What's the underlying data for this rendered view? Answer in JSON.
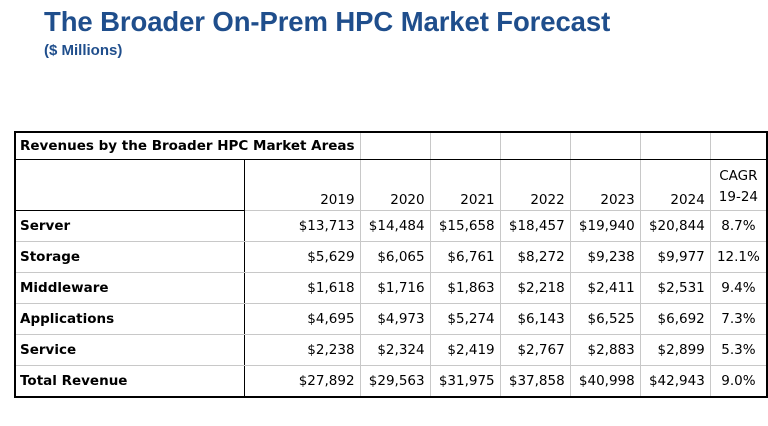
{
  "title": "The Broader On-Prem HPC Market Forecast",
  "subtitle": "($ Millions)",
  "table": {
    "caption": "Revenues by the Broader HPC Market Areas",
    "years": [
      "2019",
      "2020",
      "2021",
      "2022",
      "2023",
      "2024"
    ],
    "cagr_header": [
      "CAGR",
      "19-24"
    ],
    "rows": [
      {
        "label": "Server",
        "values": [
          "$13,713",
          "$14,484",
          "$15,658",
          "$18,457",
          "$19,940",
          "$20,844"
        ],
        "cagr": "8.7%"
      },
      {
        "label": "Storage",
        "values": [
          "$5,629",
          "$6,065",
          "$6,761",
          "$8,272",
          "$9,238",
          "$9,977"
        ],
        "cagr": "12.1%"
      },
      {
        "label": "Middleware",
        "values": [
          "$1,618",
          "$1,716",
          "$1,863",
          "$2,218",
          "$2,411",
          "$2,531"
        ],
        "cagr": "9.4%"
      },
      {
        "label": "Applications",
        "values": [
          "$4,695",
          "$4,973",
          "$5,274",
          "$6,143",
          "$6,525",
          "$6,692"
        ],
        "cagr": "7.3%"
      },
      {
        "label": "Service",
        "values": [
          "$2,238",
          "$2,324",
          "$2,419",
          "$2,767",
          "$2,883",
          "$2,899"
        ],
        "cagr": "5.3%"
      },
      {
        "label": "Total Revenue",
        "values": [
          "$27,892",
          "$29,563",
          "$31,975",
          "$37,858",
          "$40,998",
          "$42,943"
        ],
        "cagr": "9.0%"
      }
    ]
  }
}
